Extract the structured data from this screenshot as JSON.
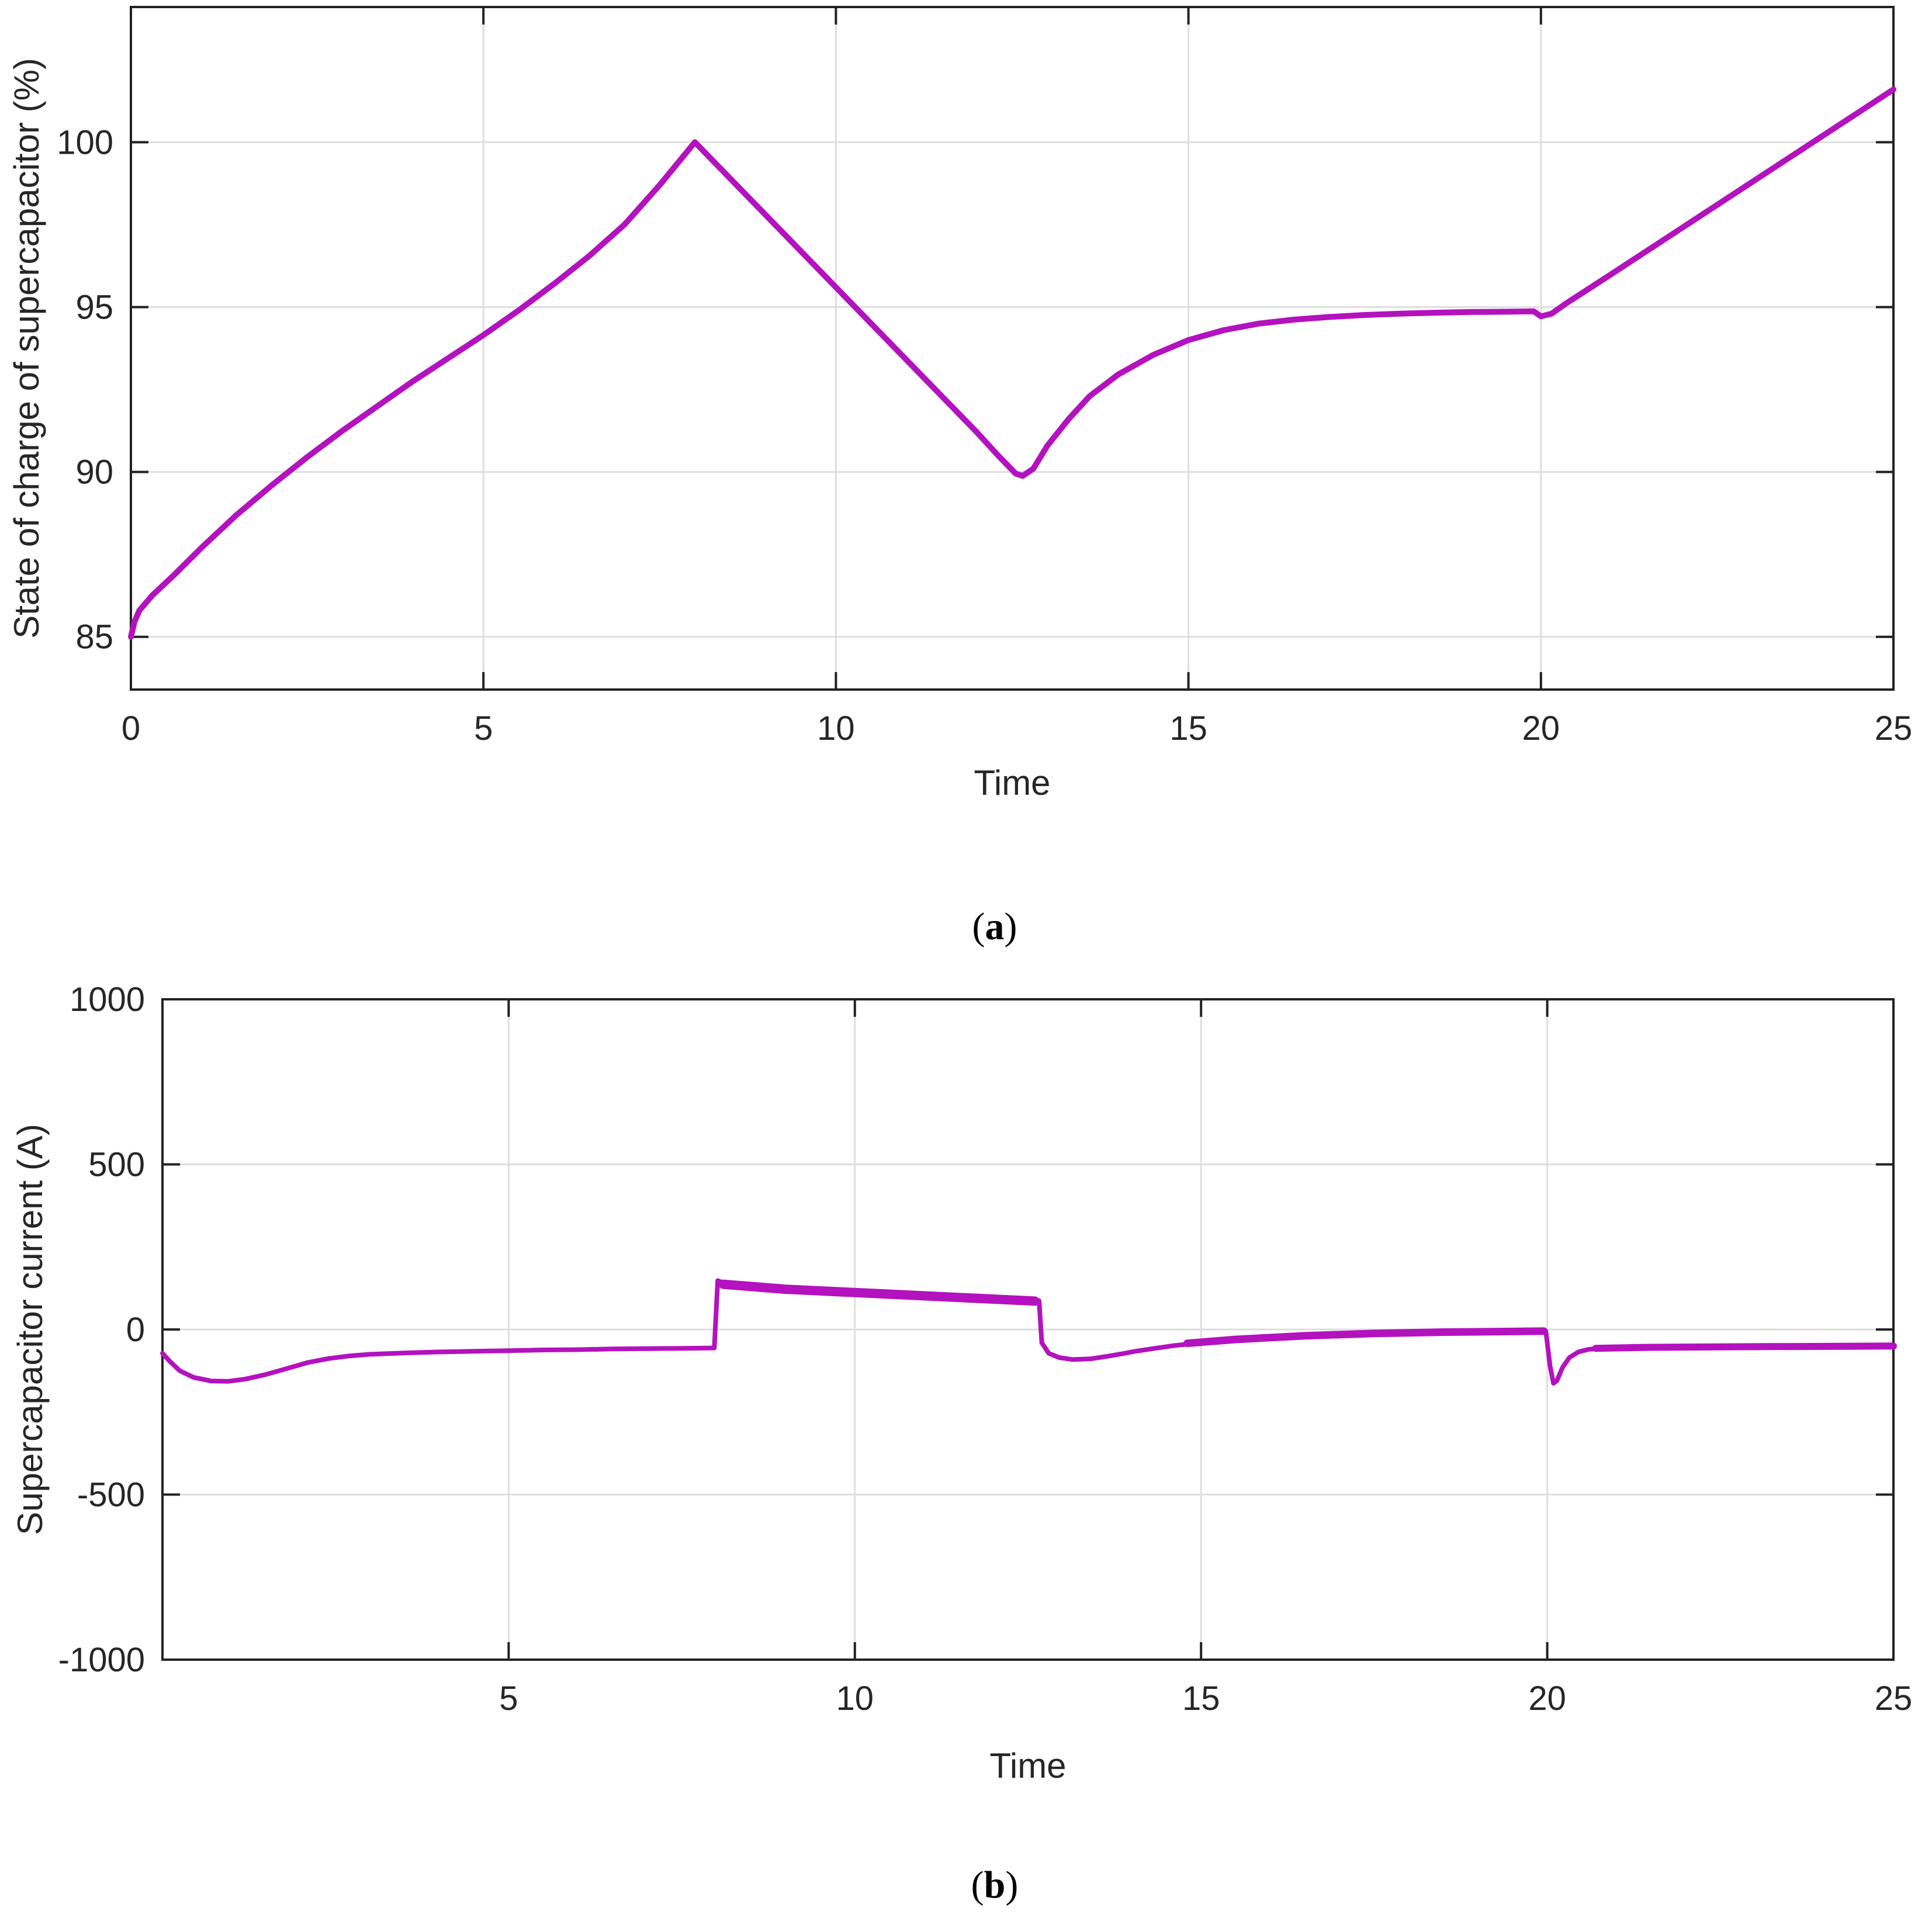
{
  "figure": {
    "background": "#ffffff",
    "line_color": "#b312be",
    "grid_color": "#dedede",
    "axis_color": "#222222",
    "text_color": "#262626"
  },
  "panels": [
    {
      "caption_open": "(",
      "caption_letter": "a",
      "caption_close": ")"
    },
    {
      "caption_open": "(",
      "caption_letter": "b",
      "caption_close": ")"
    }
  ],
  "chart_data": [
    {
      "type": "line",
      "title": "",
      "xlabel": "Time",
      "ylabel": "State of charge of supercapacitor (%)",
      "xlim": [
        0,
        25
      ],
      "ylim": [
        83.4,
        104.1
      ],
      "xticks": [
        0,
        5,
        10,
        15,
        20,
        25
      ],
      "yticks": [
        85,
        90,
        95,
        100
      ],
      "grid": true,
      "legend": "none",
      "line_color": "#b312be",
      "series": [
        {
          "name": "state-of-charge",
          "width": 10,
          "points": [
            [
              0,
              85
            ],
            [
              0.05,
              85.45
            ],
            [
              0.12,
              85.8
            ],
            [
              0.3,
              86.25
            ],
            [
              0.6,
              86.85
            ],
            [
              1,
              87.7
            ],
            [
              1.5,
              88.7
            ],
            [
              2,
              89.6
            ],
            [
              2.5,
              90.45
            ],
            [
              3,
              91.25
            ],
            [
              3.5,
              92.0
            ],
            [
              4,
              92.75
            ],
            [
              4.5,
              93.45
            ],
            [
              5,
              94.15
            ],
            [
              5.5,
              94.9
            ],
            [
              6,
              95.7
            ],
            [
              6.5,
              96.55
            ],
            [
              7,
              97.5
            ],
            [
              7.5,
              98.7
            ],
            [
              8,
              100
            ],
            [
              8.5,
              98.9
            ],
            [
              9,
              97.8
            ],
            [
              9.5,
              96.7
            ],
            [
              10,
              95.6
            ],
            [
              10.5,
              94.5
            ],
            [
              11,
              93.4
            ],
            [
              11.5,
              92.3
            ],
            [
              12,
              91.2
            ],
            [
              12.3,
              90.5
            ],
            [
              12.55,
              89.95
            ],
            [
              12.65,
              89.88
            ],
            [
              12.8,
              90.1
            ],
            [
              13,
              90.8
            ],
            [
              13.3,
              91.6
            ],
            [
              13.6,
              92.3
            ],
            [
              14,
              92.95
            ],
            [
              14.5,
              93.55
            ],
            [
              15,
              94.0
            ],
            [
              15.5,
              94.3
            ],
            [
              16,
              94.5
            ],
            [
              16.5,
              94.62
            ],
            [
              17,
              94.7
            ],
            [
              17.5,
              94.76
            ],
            [
              18,
              94.8
            ],
            [
              18.5,
              94.83
            ],
            [
              19,
              94.85
            ],
            [
              19.5,
              94.86
            ],
            [
              19.9,
              94.87
            ],
            [
              20,
              94.72
            ],
            [
              20.15,
              94.8
            ],
            [
              20.35,
              95.1
            ],
            [
              21,
              96.0
            ],
            [
              22,
              97.4
            ],
            [
              23,
              98.8
            ],
            [
              24,
              100.2
            ],
            [
              25,
              101.6
            ]
          ]
        }
      ]
    },
    {
      "type": "line",
      "title": "",
      "xlabel": "Time",
      "ylabel": "Supercapacitor current (A)",
      "xlim": [
        0,
        25
      ],
      "ylim": [
        -1000,
        1000
      ],
      "xticks": [
        5,
        10,
        15,
        20,
        25
      ],
      "yticks": [
        -1000,
        -500,
        0,
        500,
        1000
      ],
      "grid": true,
      "legend": "none",
      "line_color": "#b312be",
      "series": [
        {
          "name": "supercapacitor-current",
          "width": 8,
          "points": [
            [
              0,
              -72
            ],
            [
              0.1,
              -95
            ],
            [
              0.25,
              -125
            ],
            [
              0.45,
              -145
            ],
            [
              0.7,
              -156
            ],
            [
              0.95,
              -157
            ],
            [
              1.2,
              -150
            ],
            [
              1.5,
              -136
            ],
            [
              1.8,
              -118
            ],
            [
              2.1,
              -100
            ],
            [
              2.4,
              -88
            ],
            [
              2.7,
              -80
            ],
            [
              3,
              -75
            ],
            [
              3.5,
              -71
            ],
            [
              4,
              -68
            ],
            [
              4.5,
              -66
            ],
            [
              5,
              -64
            ],
            [
              5.5,
              -62
            ],
            [
              6,
              -61
            ],
            [
              6.5,
              -59
            ],
            [
              7,
              -58
            ],
            [
              7.5,
              -57
            ],
            [
              7.97,
              -56
            ],
            [
              8.02,
              148
            ],
            [
              8.1,
              141
            ],
            [
              8.3,
              134
            ],
            [
              8.6,
              130
            ],
            [
              9,
              125
            ],
            [
              9.5,
              119
            ],
            [
              10,
              114
            ],
            [
              10.5,
              109
            ],
            [
              11,
              104
            ],
            [
              11.5,
              98
            ],
            [
              12,
              93
            ],
            [
              12.3,
              90
            ],
            [
              12.6,
              87
            ],
            [
              12.66,
              87
            ],
            [
              12.7,
              -40
            ],
            [
              12.8,
              -72
            ],
            [
              12.95,
              -85
            ],
            [
              13.15,
              -91
            ],
            [
              13.4,
              -89
            ],
            [
              13.65,
              -81
            ],
            [
              13.9,
              -72
            ],
            [
              14.05,
              -66
            ],
            [
              14.3,
              -58
            ],
            [
              14.6,
              -49
            ],
            [
              15,
              -40
            ],
            [
              15.4,
              -33
            ],
            [
              15.8,
              -27
            ],
            [
              16.2,
              -22
            ],
            [
              16.6,
              -18
            ],
            [
              17,
              -15
            ],
            [
              17.5,
              -12
            ],
            [
              18,
              -10
            ],
            [
              18.5,
              -8
            ],
            [
              19,
              -7
            ],
            [
              19.5,
              -6
            ],
            [
              19.98,
              -5
            ],
            [
              20.0,
              -40
            ],
            [
              20.04,
              -110
            ],
            [
              20.09,
              -163
            ],
            [
              20.14,
              -155
            ],
            [
              20.22,
              -115
            ],
            [
              20.32,
              -85
            ],
            [
              20.45,
              -68
            ],
            [
              20.6,
              -60
            ],
            [
              20.8,
              -57
            ],
            [
              21,
              -55
            ],
            [
              21.5,
              -54
            ],
            [
              22,
              -53
            ],
            [
              23,
              -52
            ],
            [
              24,
              -51
            ],
            [
              25,
              -50
            ]
          ]
        },
        {
          "name": "noise-band-discharge-plateau",
          "width": 16,
          "points": [
            [
              8.1,
              137
            ],
            [
              9,
              122
            ],
            [
              10,
              112
            ],
            [
              11,
              102
            ],
            [
              12,
              92
            ],
            [
              12.6,
              86
            ]
          ]
        },
        {
          "name": "noise-band-recovery",
          "width": 13,
          "points": [
            [
              14.8,
              -42
            ],
            [
              15.5,
              -30
            ],
            [
              16.5,
              -19
            ],
            [
              17.5,
              -12
            ],
            [
              18.5,
              -8
            ],
            [
              19.5,
              -6
            ],
            [
              19.95,
              -5
            ]
          ]
        },
        {
          "name": "noise-band-tail",
          "width": 12,
          "points": [
            [
              20.7,
              -57
            ],
            [
              21.5,
              -54
            ],
            [
              23,
              -52
            ],
            [
              25,
              -50
            ]
          ]
        }
      ]
    }
  ]
}
